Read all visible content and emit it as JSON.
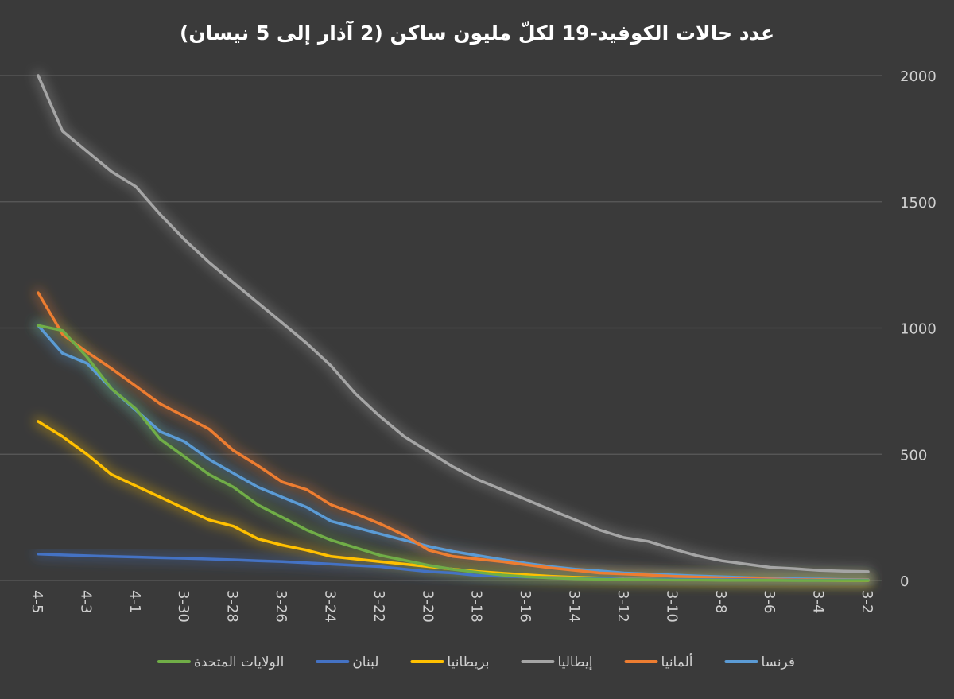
{
  "chart_data": {
    "type": "line",
    "title": "عدد حالات الكوفيد-19 لكلّ مليون ساكن (2 آذار إلى 5 نيسان)",
    "xlabel": "",
    "ylabel": "",
    "ylim": [
      0,
      2000
    ],
    "yticks": [
      "0",
      "500",
      "1000",
      "1500",
      "2000"
    ],
    "x": [
      "3-2",
      "3-3",
      "3-4",
      "3-5",
      "3-6",
      "3-7",
      "3-8",
      "3-9",
      "3-10",
      "3-11",
      "3-12",
      "3-13",
      "3-14",
      "3-15",
      "3-16",
      "3-17",
      "3-18",
      "3-19",
      "3-20",
      "3-21",
      "3-22",
      "3-23",
      "3-24",
      "3-25",
      "3-26",
      "3-27",
      "3-28",
      "3-29",
      "3-30",
      "3-31",
      "4-1",
      "4-2",
      "4-3",
      "4-4",
      "4-5"
    ],
    "x_labels_shown": [
      "3-2",
      "3-4",
      "3-6",
      "3-8",
      "3-10",
      "3-12",
      "3-14",
      "3-16",
      "3-18",
      "3-20",
      "3-22",
      "3-24",
      "3-26",
      "3-28",
      "3-30",
      "4-1",
      "4-3",
      "4-5"
    ],
    "x_reversed": true,
    "grid": "horizontal",
    "legend_position": "bottom",
    "series": [
      {
        "name": "فرنسا",
        "color": "#5b9bd5",
        "values": [
          3,
          4,
          6,
          7,
          9,
          12,
          15,
          18,
          22,
          26,
          30,
          38,
          45,
          55,
          68,
          83,
          99,
          115,
          135,
          160,
          185,
          210,
          235,
          290,
          330,
          370,
          425,
          480,
          550,
          590,
          675,
          760,
          860,
          900,
          1010
        ]
      },
      {
        "name": "ألمانيا",
        "color": "#ed7d31",
        "values": [
          2,
          2,
          3,
          4,
          6,
          8,
          11,
          14,
          17,
          22,
          26,
          30,
          40,
          50,
          62,
          75,
          85,
          95,
          120,
          180,
          225,
          265,
          300,
          360,
          390,
          455,
          515,
          600,
          650,
          700,
          770,
          840,
          905,
          975,
          1140
        ]
      },
      {
        "name": "إيطاليا",
        "color": "#a5a5a5",
        "values": [
          35,
          37,
          40,
          47,
          52,
          65,
          78,
          98,
          125,
          155,
          170,
          200,
          240,
          280,
          320,
          360,
          400,
          450,
          510,
          570,
          650,
          740,
          850,
          940,
          1020,
          1100,
          1180,
          1260,
          1350,
          1450,
          1560,
          1620,
          1700,
          1780,
          2000
        ]
      },
      {
        "name": "بريطانيا",
        "color": "#ffc000",
        "values": [
          0,
          0,
          1,
          1,
          2,
          2,
          3,
          4,
          5,
          6,
          7,
          10,
          13,
          17,
          23,
          29,
          36,
          45,
          55,
          65,
          75,
          85,
          95,
          120,
          140,
          165,
          215,
          240,
          285,
          330,
          375,
          420,
          500,
          570,
          630
        ]
      },
      {
        "name": "لبنان",
        "color": "#4472c4",
        "values": [
          1,
          1,
          1,
          2,
          2,
          3,
          3,
          4,
          5,
          5,
          6,
          8,
          10,
          12,
          14,
          17,
          20,
          30,
          35,
          45,
          55,
          60,
          65,
          70,
          75,
          78,
          82,
          85,
          88,
          90,
          93,
          95,
          98,
          101,
          105
        ]
      },
      {
        "name": "الولايات المتحدة",
        "color": "#70ad47",
        "values": [
          0,
          0,
          0,
          0,
          1,
          1,
          1,
          2,
          2,
          3,
          4,
          5,
          7,
          10,
          15,
          22,
          32,
          44,
          60,
          80,
          100,
          130,
          160,
          200,
          250,
          300,
          370,
          420,
          490,
          560,
          680,
          760,
          885,
          990,
          1010
        ]
      }
    ]
  }
}
